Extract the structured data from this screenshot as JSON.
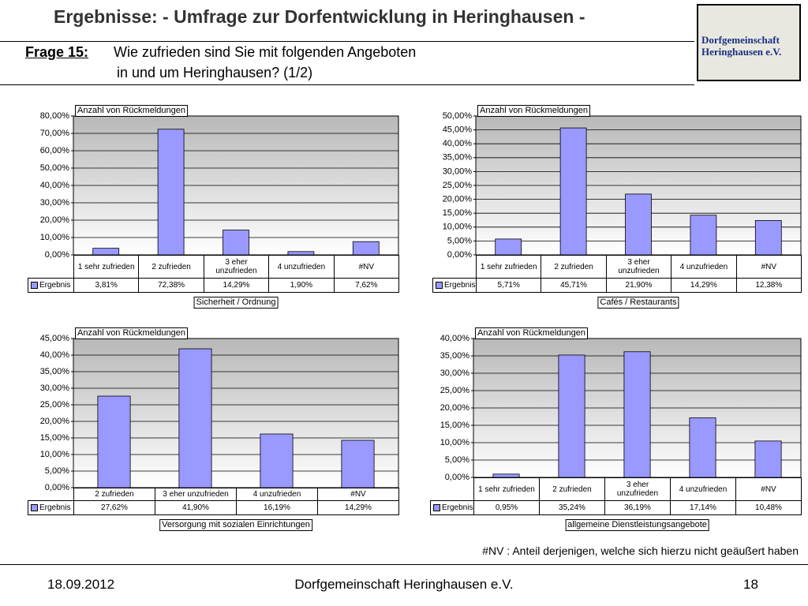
{
  "header": {
    "title": "Ergebnisse: - Umfrage zur Dorfentwicklung in Heringhausen -",
    "question_label": "Frage 15:",
    "question_lines": [
      "Wie zufrieden sind Sie mit folgenden Angeboten",
      "in und um Heringhausen? (1/2)"
    ]
  },
  "logo": {
    "lines": [
      "Dorfgemeinschaft",
      "Heringhausen e.V."
    ]
  },
  "note": "#NV :  Anteil derjenigen, welche sich hierzu nicht geäußert haben",
  "footer": {
    "date": "18.09.2012",
    "organization": "Dorfgemeinschaft Heringhausen e.V.",
    "page": "18"
  },
  "chart_data": [
    {
      "type": "bar",
      "title": "Anzahl von Rückmeldungen",
      "caption": "Sicherheit / Ordnung",
      "categories": [
        "1 sehr zufrieden",
        "2 zufrieden",
        "3 eher unzufrieden",
        "4 unzufrieden",
        "#NV"
      ],
      "series": [
        {
          "name": "Ergebnis",
          "color": "#9999ff",
          "values": [
            3.81,
            72.38,
            14.29,
            1.9,
            7.62
          ],
          "value_labels": [
            "3,81%",
            "72,38%",
            "14,29%",
            "1,90%",
            "7,62%"
          ]
        }
      ],
      "ylim": [
        0,
        80
      ],
      "yticks": [
        {
          "value": 0,
          "label": "0,00%"
        },
        {
          "value": 10,
          "label": "10,00%"
        },
        {
          "value": 20,
          "label": "20,00%"
        },
        {
          "value": 30,
          "label": "30,00%"
        },
        {
          "value": 40,
          "label": "40,00%"
        },
        {
          "value": 50,
          "label": "50,00%"
        },
        {
          "value": 60,
          "label": "60,00%"
        },
        {
          "value": 70,
          "label": "70,00%"
        },
        {
          "value": 80,
          "label": "80,00%"
        }
      ],
      "grid": true
    },
    {
      "type": "bar",
      "title": "Anzahl von Rückmeldungen",
      "caption": "Cafés / Restaurants",
      "categories": [
        "1 sehr zufrieden",
        "2 zufrieden",
        "3 eher unzufrieden",
        "4 unzufrieden",
        "#NV"
      ],
      "series": [
        {
          "name": "Ergebnis",
          "color": "#9999ff",
          "values": [
            5.71,
            45.71,
            21.9,
            14.29,
            12.38
          ],
          "value_labels": [
            "5,71%",
            "45,71%",
            "21,90%",
            "14,29%",
            "12,38%"
          ]
        }
      ],
      "ylim": [
        0,
        50
      ],
      "yticks": [
        {
          "value": 0,
          "label": "0,00%"
        },
        {
          "value": 5,
          "label": "5,00%"
        },
        {
          "value": 10,
          "label": "10,00%"
        },
        {
          "value": 15,
          "label": "15,00%"
        },
        {
          "value": 20,
          "label": "20,00%"
        },
        {
          "value": 25,
          "label": "25,00%"
        },
        {
          "value": 30,
          "label": "30,00%"
        },
        {
          "value": 35,
          "label": "35,00%"
        },
        {
          "value": 40,
          "label": "40,00%"
        },
        {
          "value": 45,
          "label": "45,00%"
        },
        {
          "value": 50,
          "label": "50,00%"
        }
      ],
      "grid": true
    },
    {
      "type": "bar",
      "title": "Anzahl von Rückmeldungen",
      "caption": "Versorgung mit sozialen Einrichtungen",
      "categories": [
        "2 zufrieden",
        "3 eher unzufrieden",
        "4 unzufrieden",
        "#NV"
      ],
      "series": [
        {
          "name": "Ergebnis",
          "color": "#9999ff",
          "values": [
            27.62,
            41.9,
            16.19,
            14.29
          ],
          "value_labels": [
            "27,62%",
            "41,90%",
            "16,19%",
            "14,29%"
          ]
        }
      ],
      "ylim": [
        0,
        45
      ],
      "yticks": [
        {
          "value": 0,
          "label": "0,00%"
        },
        {
          "value": 5,
          "label": "5,00%"
        },
        {
          "value": 10,
          "label": "10,00%"
        },
        {
          "value": 15,
          "label": "15,00%"
        },
        {
          "value": 20,
          "label": "20,00%"
        },
        {
          "value": 25,
          "label": "25,00%"
        },
        {
          "value": 30,
          "label": "30,00%"
        },
        {
          "value": 35,
          "label": "35,00%"
        },
        {
          "value": 40,
          "label": "40,00%"
        },
        {
          "value": 45,
          "label": "45,00%"
        }
      ],
      "grid": true
    },
    {
      "type": "bar",
      "title": "Anzahl von Rückmeldungen",
      "caption": "allgemeine Dienstleistungsangebote",
      "categories": [
        "1 sehr zufrieden",
        "2 zufrieden",
        "3 eher unzufrieden",
        "4 unzufrieden",
        "#NV"
      ],
      "series": [
        {
          "name": "Ergebnis",
          "color": "#9999ff",
          "values": [
            0.95,
            35.24,
            36.19,
            17.14,
            10.48
          ],
          "value_labels": [
            "0,95%",
            "35,24%",
            "36,19%",
            "17,14%",
            "10,48%"
          ]
        }
      ],
      "ylim": [
        0,
        40
      ],
      "yticks": [
        {
          "value": 0,
          "label": "0,00%"
        },
        {
          "value": 5,
          "label": "5,00%"
        },
        {
          "value": 10,
          "label": "10,00%"
        },
        {
          "value": 15,
          "label": "15,00%"
        },
        {
          "value": 20,
          "label": "20,00%"
        },
        {
          "value": 25,
          "label": "25,00%"
        },
        {
          "value": 30,
          "label": "30,00%"
        },
        {
          "value": 35,
          "label": "35,00%"
        },
        {
          "value": 40,
          "label": "40,00%"
        }
      ],
      "grid": true
    }
  ]
}
